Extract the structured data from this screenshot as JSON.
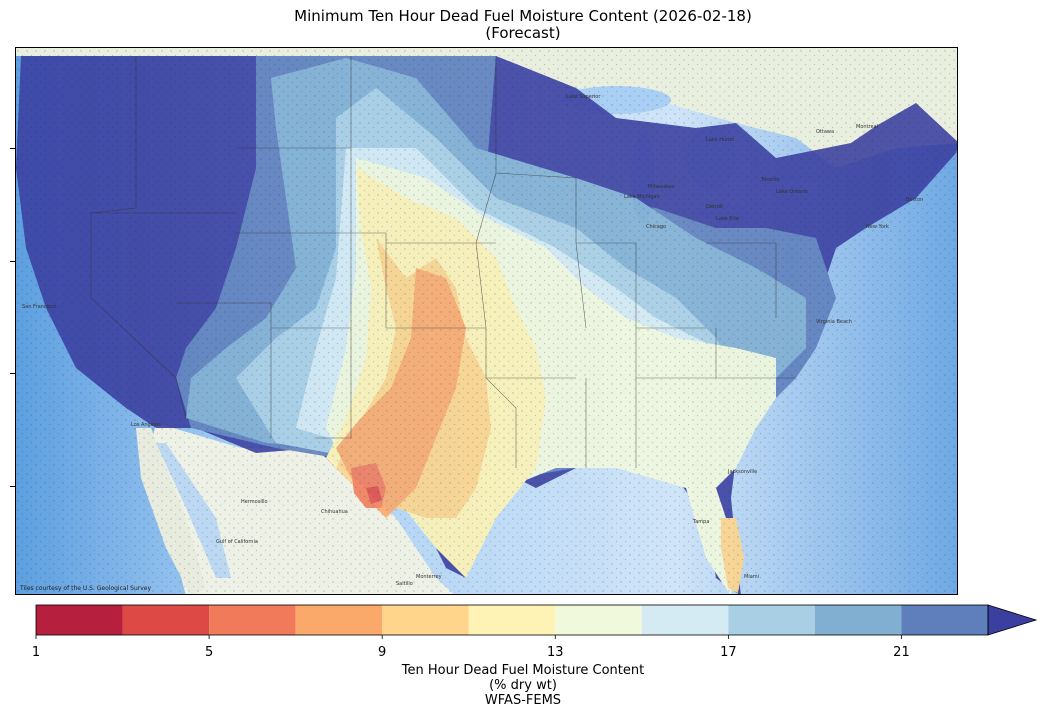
{
  "title": {
    "line1": "Minimum Ten Hour Dead Fuel Moisture Content (2026-02-18)",
    "line2": "(Forecast)"
  },
  "map": {
    "attribution": "Tiles courtesy of the U.S. Geological Survey",
    "place_labels": [
      "Hermosillo",
      "Chihuahua",
      "Monterrey",
      "Saltillo",
      "Milwaukee",
      "Chicago",
      "Detroit",
      "Toronto",
      "Ottawa",
      "Montreal",
      "Boston",
      "New York",
      "Virginia Beach",
      "Jacksonville",
      "Tampa",
      "Miami",
      "San Francisco",
      "Los Angeles",
      "Lake Superior",
      "Lake Michigan",
      "Lake Huron",
      "Lake Erie",
      "Lake Ontario",
      "Gulf of California"
    ]
  },
  "colorbar": {
    "label_line1": "Ten Hour Dead Fuel Moisture Content",
    "label_line2": "(% dry wt)",
    "source": "WFAS-FEMS",
    "ticks": [
      "1",
      "5",
      "9",
      "13",
      "17",
      "21"
    ],
    "bins": [
      {
        "from": 1,
        "to": 3,
        "color": "#b71f3e"
      },
      {
        "from": 3,
        "to": 5,
        "color": "#dd4a45"
      },
      {
        "from": 5,
        "to": 7,
        "color": "#f17a5a"
      },
      {
        "from": 7,
        "to": 9,
        "color": "#fba96a"
      },
      {
        "from": 9,
        "to": 11,
        "color": "#fed58a"
      },
      {
        "from": 11,
        "to": 13,
        "color": "#fef3b4"
      },
      {
        "from": 13,
        "to": 15,
        "color": "#f1f9dd"
      },
      {
        "from": 15,
        "to": 17,
        "color": "#d4ebf3"
      },
      {
        "from": 17,
        "to": 19,
        "color": "#a8cfe4"
      },
      {
        "from": 19,
        "to": 21,
        "color": "#80afd2"
      },
      {
        "from": 21,
        "to": 23,
        "color": "#5e7fbc"
      },
      {
        "from": 23,
        "to": 25,
        "color": "#3a3fa0"
      }
    ],
    "extend": "max"
  }
}
